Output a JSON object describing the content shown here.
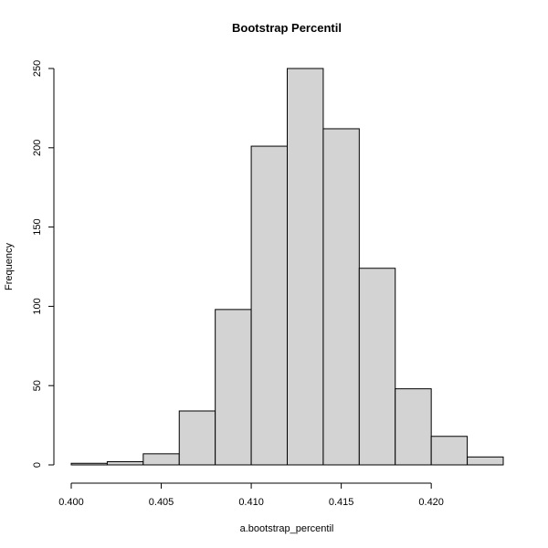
{
  "chart_data": {
    "type": "bar",
    "title": "Bootstrap Percentil",
    "xlabel": "a.bootstrap_percentil",
    "ylabel": "Frequency",
    "bin_edges": [
      0.4,
      0.402,
      0.404,
      0.406,
      0.408,
      0.41,
      0.412,
      0.414,
      0.416,
      0.418,
      0.42,
      0.422,
      0.424
    ],
    "values": [
      1,
      2,
      7,
      34,
      98,
      201,
      250,
      212,
      124,
      48,
      18,
      5
    ],
    "xlim": [
      0.4,
      0.424
    ],
    "ylim": [
      0,
      250
    ],
    "x_ticks": [
      0.4,
      0.405,
      0.41,
      0.415,
      0.42
    ],
    "x_tick_labels": [
      "0.400",
      "0.405",
      "0.410",
      "0.415",
      "0.420"
    ],
    "y_ticks": [
      0,
      50,
      100,
      150,
      200,
      250
    ],
    "y_tick_labels": [
      "0",
      "50",
      "100",
      "150",
      "200",
      "250"
    ],
    "grid": false,
    "colors": {
      "bar_fill": "#d3d3d3",
      "bar_stroke": "#000000"
    }
  }
}
